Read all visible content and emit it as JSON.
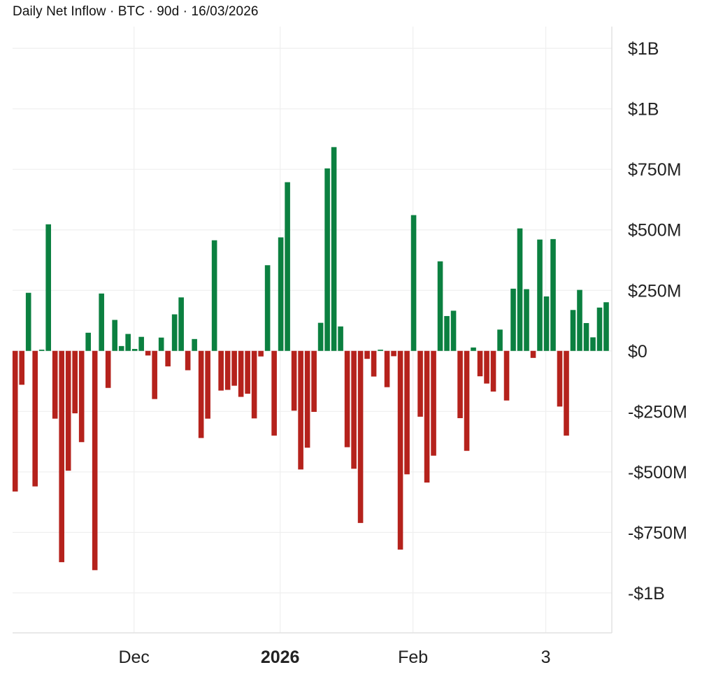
{
  "title": "Daily Net Inflow · BTC · 90d · 16/03/2026",
  "chart_data": {
    "type": "bar",
    "title": "Daily Net Inflow · BTC · 90d · 16/03/2026",
    "xlabel": "",
    "ylabel": "",
    "unit": "USD millions",
    "ylim": [
      -1165,
      1340
    ],
    "grid": true,
    "legend": "none",
    "colors": {
      "positive": "#0b8040",
      "negative": "#b5221c"
    },
    "values": [
      -581,
      -140,
      240,
      -560,
      5,
      523,
      -280,
      -873,
      -495,
      -258,
      -377,
      75,
      -906,
      237,
      -153,
      128,
      20,
      70,
      8,
      58,
      -19,
      -199,
      55,
      -64,
      151,
      221,
      -80,
      49,
      -360,
      -280,
      457,
      -164,
      -161,
      -144,
      -190,
      -177,
      -279,
      -23,
      354,
      -350,
      469,
      697,
      -247,
      -490,
      -400,
      -252,
      116,
      754,
      842,
      101,
      -398,
      -487,
      -711,
      -33,
      -106,
      5,
      -150,
      -22,
      -821,
      -510,
      561,
      -272,
      -544,
      -433,
      370,
      144,
      166,
      -278,
      -413,
      14,
      -105,
      -135,
      -168,
      88,
      -205,
      257,
      506,
      255,
      -29,
      460,
      225,
      462,
      -230,
      -350,
      169,
      252,
      115,
      56,
      179,
      201
    ],
    "y_ticks": [
      {
        "value": 1250,
        "label": "$1B"
      },
      {
        "value": 1000,
        "label": "$1B"
      },
      {
        "value": 750,
        "label": "$750M"
      },
      {
        "value": 500,
        "label": "$500M"
      },
      {
        "value": 250,
        "label": "$250M"
      },
      {
        "value": 0,
        "label": "$0"
      },
      {
        "value": -250,
        "label": "-$250M"
      },
      {
        "value": -500,
        "label": "-$500M"
      },
      {
        "value": -750,
        "label": "-$750M"
      },
      {
        "value": -1000,
        "label": "-$1B"
      }
    ],
    "x_ticks": [
      {
        "index": 18.9,
        "label": "Dec",
        "bold": false
      },
      {
        "index": 40.9,
        "label": "2026",
        "bold": true
      },
      {
        "index": 60.9,
        "label": "Feb",
        "bold": false
      },
      {
        "index": 80.9,
        "label": "3",
        "bold": false
      }
    ]
  }
}
